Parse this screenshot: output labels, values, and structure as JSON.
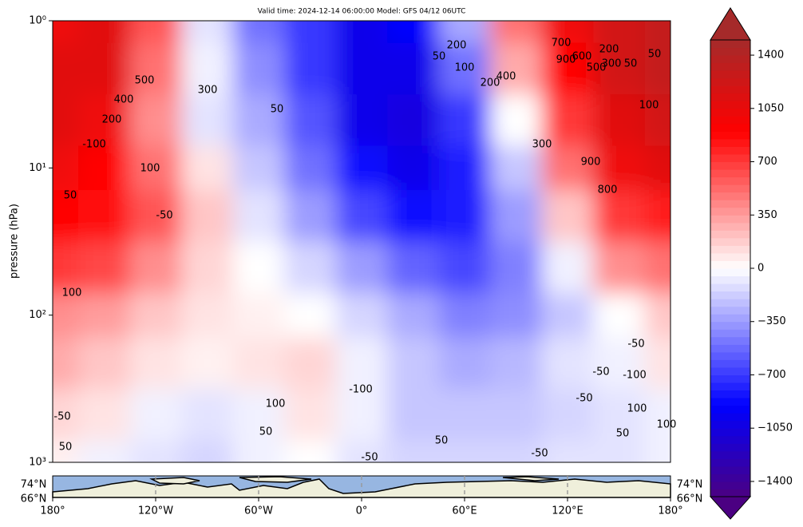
{
  "chart_data": {
    "type": "heatmap",
    "title": "Valid time: 2024-12-14 06:00:00 Model: GFS 04/12 06UTC",
    "y_label": "pressure (hPa)",
    "yscale": "log",
    "ylim": [
      1000,
      1
    ],
    "yticks": [
      {
        "value": 1,
        "label": "10⁰"
      },
      {
        "value": 10,
        "label": "10¹"
      },
      {
        "value": 100,
        "label": "10²"
      },
      {
        "value": 1000,
        "label": "10³"
      }
    ],
    "xlim": [
      -180,
      180
    ],
    "x": [
      -180,
      -150,
      -120,
      -90,
      -60,
      -30,
      0,
      30,
      60,
      90,
      120,
      150,
      180
    ],
    "y": [
      1,
      2,
      5,
      10,
      20,
      50,
      100,
      200,
      500,
      1000
    ],
    "z": [
      [
        1000,
        1100,
        600,
        -100,
        -500,
        -700,
        -1000,
        -900,
        -300,
        500,
        1000,
        1200,
        1300
      ],
      [
        1100,
        1100,
        500,
        -50,
        -400,
        -700,
        -1000,
        -1000,
        -500,
        300,
        900,
        1200,
        1300
      ],
      [
        1100,
        1000,
        400,
        -100,
        -300,
        -600,
        -1000,
        -1050,
        -700,
        0,
        700,
        1100,
        1200
      ],
      [
        1000,
        900,
        500,
        100,
        -200,
        -500,
        -850,
        -1000,
        -800,
        -200,
        500,
        1000,
        1100
      ],
      [
        900,
        850,
        600,
        200,
        -100,
        -350,
        -650,
        -850,
        -800,
        -350,
        200,
        700,
        800
      ],
      [
        700,
        650,
        400,
        150,
        0,
        -150,
        -350,
        -550,
        -650,
        -450,
        -50,
        400,
        500
      ],
      [
        400,
        350,
        200,
        100,
        50,
        0,
        -150,
        -300,
        -450,
        -400,
        -200,
        0,
        200
      ],
      [
        300,
        200,
        100,
        50,
        100,
        150,
        -50,
        -200,
        -300,
        -250,
        -100,
        -50,
        100
      ],
      [
        150,
        100,
        -50,
        -100,
        -50,
        100,
        -50,
        -200,
        -200,
        -200,
        -150,
        -100,
        -50
      ],
      [
        50,
        -50,
        -100,
        -150,
        -50,
        0,
        -100,
        -150,
        -150,
        -150,
        -100,
        -100,
        -50
      ]
    ],
    "colormap": [
      {
        "value": -1500,
        "color": "#4b0082"
      },
      {
        "value": -900,
        "color": "#0000ff"
      },
      {
        "value": 0,
        "color": "#ffffff"
      },
      {
        "value": 900,
        "color": "#ff0000"
      },
      {
        "value": 1500,
        "color": "#a52a2a"
      }
    ],
    "clim": [
      -1500,
      1500
    ],
    "cticks": [
      1400,
      1050,
      700,
      350,
      0,
      {
        "value": -350,
        "label": "−350"
      },
      {
        "value": -700,
        "label": "−700"
      },
      {
        "value": -1050,
        "label": "−1050"
      },
      {
        "value": -1400,
        "label": "−1400"
      }
    ],
    "contour_labels": [
      500,
      400,
      200,
      -100,
      50,
      100,
      -50,
      300,
      50,
      50,
      200,
      100,
      200,
      400,
      700,
      900,
      600,
      200,
      500,
      300,
      50,
      50,
      100,
      300,
      900,
      800,
      100,
      -50,
      -50,
      -100,
      -50,
      100,
      50,
      100,
      -50,
      50,
      100,
      -100,
      50,
      -50,
      50,
      -50
    ],
    "map": {
      "xticks": [
        {
          "value": -180,
          "label": "180°"
        },
        {
          "value": -120,
          "label": "120°W"
        },
        {
          "value": -60,
          "label": "60°W"
        },
        {
          "value": 0,
          "label": "0°"
        },
        {
          "value": 60,
          "label": "60°E"
        },
        {
          "value": 120,
          "label": "120°E"
        },
        {
          "value": 180,
          "label": "180°"
        }
      ],
      "lat_labels": [
        "74°N",
        "66°N"
      ]
    }
  }
}
